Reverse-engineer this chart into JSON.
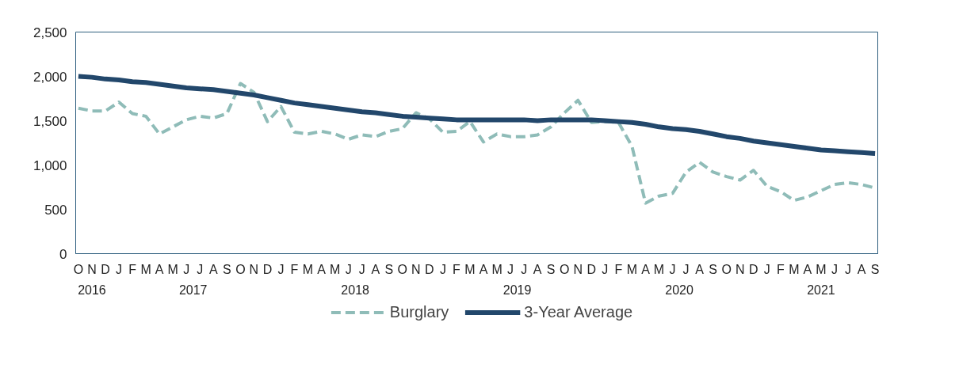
{
  "chart_data": {
    "type": "line",
    "categories": [
      "O",
      "N",
      "D",
      "J",
      "F",
      "M",
      "A",
      "M",
      "J",
      "J",
      "A",
      "S",
      "O",
      "N",
      "D",
      "J",
      "F",
      "M",
      "A",
      "M",
      "J",
      "J",
      "A",
      "S",
      "O",
      "N",
      "D",
      "J",
      "F",
      "M",
      "A",
      "M",
      "J",
      "J",
      "A",
      "S",
      "O",
      "N",
      "D",
      "J",
      "F",
      "M",
      "A",
      "M",
      "J",
      "J",
      "A",
      "S",
      "O",
      "N",
      "D",
      "J",
      "F",
      "M",
      "A",
      "M",
      "J",
      "J",
      "A",
      "S"
    ],
    "series": [
      {
        "name": "Burglary",
        "color": "#8fbcb8",
        "line_style": "dashed",
        "values": [
          1640,
          1610,
          1610,
          1710,
          1580,
          1550,
          1350,
          1430,
          1510,
          1550,
          1530,
          1580,
          1920,
          1820,
          1490,
          1660,
          1370,
          1350,
          1380,
          1350,
          1290,
          1340,
          1320,
          1380,
          1410,
          1590,
          1520,
          1370,
          1380,
          1490,
          1260,
          1350,
          1320,
          1320,
          1340,
          1430,
          1590,
          1730,
          1480,
          1490,
          1480,
          1210,
          570,
          650,
          680,
          920,
          1030,
          920,
          870,
          830,
          940,
          760,
          700,
          600,
          640,
          710,
          780,
          800,
          780,
          740
        ]
      },
      {
        "name": "3-Year Average",
        "color": "#22476b",
        "line_style": "solid",
        "values": [
          2000,
          1990,
          1970,
          1960,
          1940,
          1930,
          1910,
          1890,
          1870,
          1860,
          1850,
          1830,
          1810,
          1790,
          1760,
          1730,
          1700,
          1680,
          1660,
          1640,
          1620,
          1600,
          1590,
          1570,
          1550,
          1540,
          1530,
          1520,
          1510,
          1510,
          1510,
          1510,
          1510,
          1510,
          1500,
          1510,
          1510,
          1510,
          1510,
          1500,
          1490,
          1480,
          1460,
          1430,
          1410,
          1400,
          1380,
          1350,
          1320,
          1300,
          1270,
          1250,
          1230,
          1210,
          1190,
          1170,
          1160,
          1150,
          1140,
          1130
        ]
      }
    ],
    "ylim": [
      0,
      2500
    ],
    "yticks": [
      {
        "value": 0,
        "label": "0"
      },
      {
        "value": 500,
        "label": "500"
      },
      {
        "value": 1000,
        "label": "1,000"
      },
      {
        "value": 1500,
        "label": "1,500"
      },
      {
        "value": 2000,
        "label": "2,000"
      },
      {
        "value": 2500,
        "label": "2,500"
      }
    ],
    "annotations": [
      "2016",
      "2017",
      "2018",
      "2019",
      "2020",
      "2021"
    ],
    "grid": false,
    "legend": "bottom",
    "marker": "none"
  }
}
